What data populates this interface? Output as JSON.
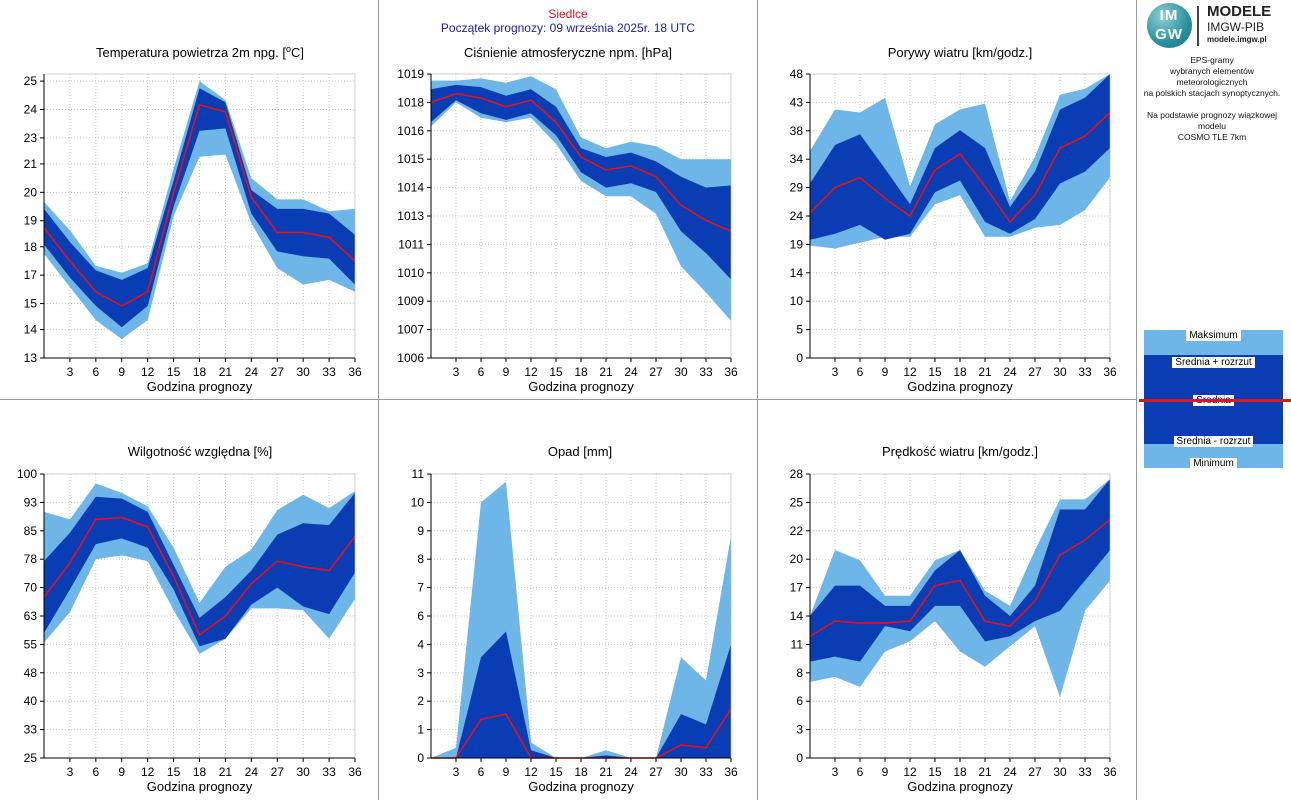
{
  "header": {
    "city": "Siedlce",
    "forecast_start": "Początek prognozy: 09 września 2025r. 18 UTC"
  },
  "logo": {
    "mark_top": "IM",
    "mark_bottom": "GW",
    "title": "MODELE",
    "subtitle": "IMGW-PIB",
    "url": "modele.imgw.pl"
  },
  "info": {
    "line1": "EPS-gramy",
    "line2": "wybranych elementów meteorologicznych",
    "line3": "na polskich stacjach  synoptycznych.",
    "line4": "Na podstawie prognozy wiązkowej modelu",
    "line5": "COSMO TLE 7km"
  },
  "legend": {
    "max": "Maksimum",
    "mean_plus": "Średnia + rozrzut",
    "mean": "Średnia",
    "mean_minus": "Średnia - rozrzut",
    "min": "Minimum"
  },
  "colors": {
    "minmax_band": "#6eb5e8",
    "spread_band": "#0a3cb4",
    "mean_line": "#e0141e",
    "gridline": "#c8c8c8"
  },
  "chart_data": [
    {
      "type": "area",
      "title": "Temperatura powietrza 2m npg. [°C]",
      "title_main": "Temperatura powietrza 2m npg. [",
      "title_sup": "o",
      "title_end": "C]",
      "xlabel": "Godzina prognozy",
      "x": [
        0,
        3,
        6,
        9,
        12,
        15,
        18,
        21,
        24,
        27,
        30,
        33,
        36
      ],
      "x_ticks": [
        3,
        6,
        9,
        12,
        15,
        18,
        21,
        24,
        27,
        30,
        33,
        36
      ],
      "xlim": [
        0,
        36
      ],
      "ylim": [
        13,
        25
      ],
      "y_ticks": [
        13,
        14,
        15,
        17,
        18,
        19,
        20,
        21,
        23,
        24,
        25
      ],
      "y_tick_values": [
        13,
        14.2,
        15.3,
        16.5,
        17.7,
        18.8,
        20,
        21.2,
        22.3,
        23.5,
        24.7
      ],
      "max": [
        19.6,
        18.4,
        16.9,
        16.6,
        17.0,
        21.0,
        24.7,
        23.9,
        20.6,
        19.7,
        19.7,
        19.2,
        19.3
      ],
      "mean_plus": [
        19.3,
        17.9,
        16.7,
        16.3,
        16.8,
        20.5,
        24.4,
        23.8,
        20.1,
        19.3,
        19.3,
        19.1,
        18.2
      ],
      "mean": [
        18.5,
        17.1,
        15.8,
        15.2,
        15.8,
        20.0,
        23.7,
        23.4,
        19.8,
        18.3,
        18.3,
        18.1,
        17.1
      ],
      "mean_minus": [
        17.8,
        16.4,
        15.2,
        14.3,
        15.2,
        19.4,
        22.6,
        22.7,
        19.1,
        17.5,
        17.3,
        17.2,
        16.1
      ],
      "min": [
        17.4,
        16.0,
        14.6,
        13.8,
        14.6,
        19.0,
        21.5,
        21.6,
        18.7,
        16.8,
        16.1,
        16.3,
        15.8
      ]
    },
    {
      "type": "area",
      "title": "Ciśnienie atmosferyczne npm. [hPa]",
      "xlabel": "Godzina prognozy",
      "x": [
        0,
        3,
        6,
        9,
        12,
        15,
        18,
        21,
        24,
        27,
        30,
        33,
        36
      ],
      "x_ticks": [
        3,
        6,
        9,
        12,
        15,
        18,
        21,
        24,
        27,
        30,
        33,
        36
      ],
      "xlim": [
        0,
        36
      ],
      "ylim": [
        1006,
        1019
      ],
      "y_ticks": [
        1006,
        1007,
        1009,
        1010,
        1011,
        1013,
        1014,
        1015,
        1016,
        1018,
        1019
      ],
      "y_tick_values": [
        1006,
        1007.3,
        1008.6,
        1009.9,
        1011.2,
        1012.5,
        1013.8,
        1015.1,
        1016.4,
        1017.7,
        1019
      ],
      "max": [
        1018.7,
        1018.7,
        1018.8,
        1018.6,
        1018.9,
        1018.3,
        1016.1,
        1015.6,
        1015.9,
        1015.7,
        1015.1,
        1015.1,
        1015.1
      ],
      "mean_plus": [
        1018.3,
        1018.5,
        1018.4,
        1018.0,
        1018.3,
        1017.5,
        1015.6,
        1015.2,
        1015.4,
        1015.0,
        1014.3,
        1013.8,
        1013.9
      ],
      "mean": [
        1017.7,
        1018.1,
        1017.9,
        1017.5,
        1017.8,
        1016.8,
        1015.2,
        1014.6,
        1014.8,
        1014.3,
        1013.0,
        1012.3,
        1011.8
      ],
      "mean_minus": [
        1016.8,
        1017.8,
        1017.2,
        1016.9,
        1017.2,
        1016.2,
        1014.5,
        1013.8,
        1014.0,
        1013.6,
        1011.8,
        1010.8,
        1009.6
      ],
      "min": [
        1016.6,
        1017.7,
        1017.0,
        1016.8,
        1017.0,
        1015.8,
        1014.1,
        1013.4,
        1013.4,
        1012.6,
        1010.2,
        1009.0,
        1007.7
      ]
    },
    {
      "type": "area",
      "title": "Porywy wiatru [km/godz.]",
      "xlabel": "Godzina prognozy",
      "x": [
        0,
        3,
        6,
        9,
        12,
        15,
        18,
        21,
        24,
        27,
        30,
        33,
        36
      ],
      "x_ticks": [
        3,
        6,
        9,
        12,
        15,
        18,
        21,
        24,
        27,
        30,
        33,
        36
      ],
      "xlim": [
        0,
        36
      ],
      "ylim": [
        0,
        48
      ],
      "y_ticks": [
        0,
        5,
        10,
        14,
        19,
        24,
        29,
        34,
        38,
        43,
        48
      ],
      "y_tick_values": [
        0,
        4.8,
        9.6,
        14.4,
        19.2,
        24,
        28.8,
        33.6,
        38.4,
        43.2,
        48
      ],
      "max": [
        35.0,
        42.0,
        41.5,
        44.0,
        29.0,
        39.5,
        42.0,
        43.0,
        26.5,
        34.0,
        44.5,
        45.5,
        48.0
      ],
      "mean_plus": [
        29.5,
        36.0,
        37.8,
        32.0,
        26.0,
        35.5,
        38.5,
        35.5,
        25.5,
        31.5,
        42.0,
        44.0,
        48.0
      ],
      "mean": [
        24.5,
        28.8,
        30.5,
        27.0,
        24.0,
        31.8,
        34.5,
        29.0,
        23.0,
        27.5,
        35.5,
        37.5,
        41.5
      ],
      "mean_minus": [
        20.0,
        21.0,
        22.5,
        20.0,
        21.0,
        28.0,
        30.0,
        23.0,
        21.0,
        23.5,
        29.5,
        31.5,
        35.5
      ],
      "min": [
        19.0,
        18.5,
        19.5,
        20.5,
        20.5,
        26.0,
        27.5,
        20.5,
        20.5,
        22.0,
        22.5,
        25.0,
        30.5
      ]
    },
    {
      "type": "area",
      "title": "Wilgotność względna [%]",
      "xlabel": "Godzina prognozy",
      "x": [
        0,
        3,
        6,
        9,
        12,
        15,
        18,
        21,
        24,
        27,
        30,
        33,
        36
      ],
      "x_ticks": [
        3,
        6,
        9,
        12,
        15,
        18,
        21,
        24,
        27,
        30,
        33,
        36
      ],
      "xlim": [
        0,
        36
      ],
      "ylim": [
        25,
        100
      ],
      "y_ticks": [
        25,
        33,
        40,
        48,
        55,
        63,
        70,
        78,
        85,
        93,
        100
      ],
      "y_tick_values": [
        25,
        32.5,
        40,
        47.5,
        55,
        62.5,
        70,
        77.5,
        85,
        92.5,
        100
      ],
      "max": [
        90.0,
        88.0,
        97.5,
        95.0,
        91.5,
        80.5,
        66.0,
        75.5,
        80.0,
        90.5,
        94.5,
        91.0,
        95.5
      ],
      "mean_plus": [
        77.0,
        84.5,
        94.0,
        93.5,
        90.0,
        76.0,
        62.0,
        67.5,
        74.5,
        84.0,
        87.0,
        86.5,
        95.0
      ],
      "mean": [
        67.5,
        76.5,
        88.0,
        88.5,
        86.0,
        73.0,
        57.5,
        62.5,
        71.0,
        77.0,
        75.5,
        74.5,
        83.5
      ],
      "mean_minus": [
        58.0,
        69.5,
        81.5,
        83.0,
        80.5,
        69.5,
        54.5,
        56.5,
        65.5,
        70.0,
        65.0,
        63.0,
        74.0
      ],
      "min": [
        55.5,
        63.5,
        77.5,
        78.5,
        77.0,
        64.0,
        52.5,
        56.5,
        64.5,
        64.5,
        64.0,
        56.5,
        67.0
      ]
    },
    {
      "type": "area",
      "title": "Opad [mm]",
      "xlabel": "Godzina prognozy",
      "x": [
        0,
        3,
        6,
        9,
        12,
        15,
        18,
        21,
        24,
        27,
        30,
        33,
        36
      ],
      "x_ticks": [
        3,
        6,
        9,
        12,
        15,
        18,
        21,
        24,
        27,
        30,
        33,
        36
      ],
      "xlim": [
        0,
        36
      ],
      "ylim": [
        0,
        11
      ],
      "y_ticks": [
        0,
        1,
        2,
        3,
        4,
        6,
        7,
        8,
        9,
        10,
        11
      ],
      "y_tick_values": [
        0,
        1.1,
        2.2,
        3.3,
        4.4,
        5.5,
        6.6,
        7.7,
        8.8,
        9.9,
        11
      ],
      "max": [
        0.0,
        0.4,
        9.9,
        10.7,
        0.6,
        0.0,
        0.0,
        0.3,
        0.0,
        0.0,
        3.9,
        3.0,
        8.6
      ],
      "mean_plus": [
        0.0,
        0.0,
        3.9,
        4.9,
        0.3,
        0.0,
        0.0,
        0.1,
        0.0,
        0.0,
        1.7,
        1.3,
        4.4
      ],
      "mean": [
        0.0,
        0.0,
        1.5,
        1.7,
        0.0,
        0.0,
        0.0,
        0.0,
        0.0,
        0.0,
        0.5,
        0.4,
        1.9
      ],
      "mean_minus": [
        0.0,
        0.0,
        0.0,
        0.0,
        0.0,
        0.0,
        0.0,
        0.0,
        0.0,
        0.0,
        0.0,
        0.0,
        0.0
      ],
      "min": [
        0.0,
        0.0,
        0.0,
        0.0,
        0.0,
        0.0,
        0.0,
        0.0,
        0.0,
        0.0,
        0.0,
        0.0,
        0.0
      ]
    },
    {
      "type": "area",
      "title": "Prędkość wiatru [km/godz.]",
      "xlabel": "Godzina prognozy",
      "x": [
        0,
        3,
        6,
        9,
        12,
        15,
        18,
        21,
        24,
        27,
        30,
        33,
        36
      ],
      "x_ticks": [
        3,
        6,
        9,
        12,
        15,
        18,
        21,
        24,
        27,
        30,
        33,
        36
      ],
      "xlim": [
        0,
        36
      ],
      "ylim": [
        0,
        28
      ],
      "y_ticks": [
        0,
        3,
        6,
        8,
        11,
        14,
        17,
        20,
        22,
        25,
        28
      ],
      "y_tick_values": [
        0,
        2.8,
        5.6,
        8.4,
        11.2,
        14,
        16.8,
        19.6,
        22.4,
        25.2,
        28
      ],
      "max": [
        14.0,
        20.5,
        19.5,
        16.0,
        16.0,
        19.5,
        20.5,
        16.5,
        15.0,
        20.5,
        25.5,
        25.5,
        27.5
      ],
      "mean_plus": [
        14.0,
        17.0,
        17.0,
        15.0,
        15.0,
        18.5,
        20.5,
        16.0,
        14.0,
        17.0,
        24.5,
        24.5,
        27.5
      ],
      "mean": [
        12.0,
        13.5,
        13.3,
        13.3,
        13.5,
        17.0,
        17.5,
        13.5,
        13.0,
        15.5,
        20.0,
        21.5,
        23.5
      ],
      "mean_minus": [
        9.5,
        10.0,
        9.5,
        13.0,
        12.5,
        15.0,
        15.0,
        11.5,
        12.0,
        13.5,
        14.5,
        17.5,
        20.5
      ],
      "min": [
        7.5,
        8.0,
        7.0,
        10.5,
        11.5,
        13.5,
        10.5,
        9.0,
        11.0,
        13.0,
        6.0,
        14.5,
        17.5
      ]
    }
  ]
}
